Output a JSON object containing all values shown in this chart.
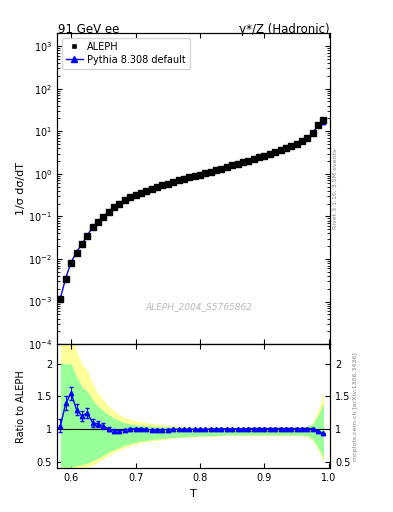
{
  "title_left": "91 GeV ee",
  "title_right": "γ*/Z (Hadronic)",
  "ylabel_main": "1/σ dσ/dT",
  "ylabel_ratio": "Ratio to ALEPH",
  "xlabel": "T",
  "right_label_top": "Rivet 3.1.10, 3.5M events",
  "right_label_bot": "mcplots.cern.ch [arXiv:1306.3436]",
  "watermark": "ALEPH_2004_S5765862",
  "legend_entries": [
    "ALEPH",
    "Pythia 8.308 default"
  ],
  "T_values": [
    0.5833,
    0.5917,
    0.6,
    0.6083,
    0.6167,
    0.625,
    0.6333,
    0.6417,
    0.65,
    0.6583,
    0.6667,
    0.675,
    0.6833,
    0.6917,
    0.7,
    0.7083,
    0.7167,
    0.725,
    0.7333,
    0.7417,
    0.75,
    0.7583,
    0.7667,
    0.775,
    0.7833,
    0.7917,
    0.8,
    0.8083,
    0.8167,
    0.825,
    0.8333,
    0.8417,
    0.85,
    0.8583,
    0.8667,
    0.875,
    0.8833,
    0.8917,
    0.9,
    0.9083,
    0.9167,
    0.925,
    0.9333,
    0.9417,
    0.95,
    0.9583,
    0.9667,
    0.975,
    0.9833,
    0.9917
  ],
  "data_values": [
    0.00115,
    0.0034,
    0.008,
    0.014,
    0.022,
    0.035,
    0.055,
    0.075,
    0.098,
    0.13,
    0.165,
    0.2,
    0.24,
    0.28,
    0.32,
    0.36,
    0.4,
    0.44,
    0.49,
    0.54,
    0.59,
    0.64,
    0.7,
    0.76,
    0.82,
    0.88,
    0.96,
    1.04,
    1.12,
    1.22,
    1.33,
    1.44,
    1.57,
    1.71,
    1.87,
    2.04,
    2.23,
    2.44,
    2.68,
    2.94,
    3.23,
    3.57,
    3.96,
    4.42,
    5.0,
    5.8,
    7.0,
    9.0,
    14.0,
    18.0
  ],
  "mc_values": [
    0.00121,
    0.0036,
    0.0084,
    0.0145,
    0.0225,
    0.0358,
    0.056,
    0.076,
    0.099,
    0.131,
    0.166,
    0.201,
    0.241,
    0.281,
    0.321,
    0.361,
    0.401,
    0.441,
    0.491,
    0.541,
    0.591,
    0.641,
    0.701,
    0.761,
    0.821,
    0.881,
    0.961,
    1.041,
    1.121,
    1.221,
    1.331,
    1.441,
    1.571,
    1.711,
    1.871,
    2.041,
    2.231,
    2.441,
    2.681,
    2.941,
    3.231,
    3.571,
    3.961,
    4.421,
    5.01,
    5.81,
    7.01,
    9.01,
    14.05,
    16.8
  ],
  "ratio_values": [
    1.05,
    1.4,
    1.55,
    1.3,
    1.2,
    1.25,
    1.1,
    1.08,
    1.05,
    1.0,
    0.98,
    0.97,
    0.99,
    1.0,
    1.01,
    1.01,
    1.0,
    0.99,
    0.99,
    0.99,
    0.995,
    1.0,
    1.0,
    1.0,
    1.0,
    1.0,
    1.0,
    1.0,
    1.005,
    1.005,
    1.005,
    1.005,
    1.005,
    1.005,
    1.005,
    1.01,
    1.01,
    1.01,
    1.01,
    1.01,
    1.01,
    1.01,
    1.01,
    1.01,
    1.01,
    1.01,
    1.01,
    1.01,
    0.97,
    0.935
  ],
  "ratio_err": [
    0.1,
    0.1,
    0.1,
    0.08,
    0.08,
    0.08,
    0.06,
    0.05,
    0.04,
    0.03,
    0.025,
    0.02,
    0.02,
    0.018,
    0.015,
    0.012,
    0.01,
    0.009,
    0.008,
    0.007,
    0.007,
    0.006,
    0.006,
    0.006,
    0.005,
    0.005,
    0.005,
    0.005,
    0.005,
    0.005,
    0.005,
    0.005,
    0.005,
    0.005,
    0.005,
    0.005,
    0.005,
    0.005,
    0.005,
    0.005,
    0.005,
    0.005,
    0.005,
    0.005,
    0.005,
    0.005,
    0.005,
    0.005,
    0.005,
    0.01
  ],
  "yellow_band_upper": [
    2.5,
    2.5,
    2.5,
    2.2,
    2.0,
    1.9,
    1.7,
    1.55,
    1.45,
    1.35,
    1.28,
    1.22,
    1.18,
    1.15,
    1.13,
    1.12,
    1.1,
    1.09,
    1.08,
    1.07,
    1.06,
    1.06,
    1.05,
    1.05,
    1.05,
    1.04,
    1.04,
    1.04,
    1.04,
    1.04,
    1.04,
    1.04,
    1.04,
    1.04,
    1.04,
    1.04,
    1.04,
    1.04,
    1.04,
    1.04,
    1.04,
    1.04,
    1.04,
    1.04,
    1.04,
    1.04,
    1.05,
    1.1,
    1.3,
    1.55
  ],
  "yellow_band_lower": [
    0.36,
    0.36,
    0.36,
    0.38,
    0.4,
    0.42,
    0.45,
    0.5,
    0.55,
    0.6,
    0.65,
    0.68,
    0.72,
    0.75,
    0.77,
    0.79,
    0.81,
    0.82,
    0.83,
    0.84,
    0.85,
    0.86,
    0.87,
    0.87,
    0.88,
    0.88,
    0.89,
    0.89,
    0.89,
    0.89,
    0.9,
    0.9,
    0.9,
    0.9,
    0.9,
    0.9,
    0.9,
    0.9,
    0.9,
    0.9,
    0.9,
    0.9,
    0.9,
    0.9,
    0.9,
    0.9,
    0.88,
    0.82,
    0.68,
    0.5
  ],
  "green_band_upper": [
    2.0,
    2.0,
    2.0,
    1.8,
    1.65,
    1.58,
    1.45,
    1.35,
    1.28,
    1.22,
    1.17,
    1.13,
    1.1,
    1.08,
    1.07,
    1.06,
    1.05,
    1.05,
    1.04,
    1.04,
    1.04,
    1.03,
    1.03,
    1.03,
    1.03,
    1.03,
    1.03,
    1.03,
    1.03,
    1.03,
    1.03,
    1.03,
    1.03,
    1.03,
    1.03,
    1.03,
    1.03,
    1.03,
    1.03,
    1.03,
    1.03,
    1.03,
    1.03,
    1.03,
    1.03,
    1.03,
    1.04,
    1.08,
    1.22,
    1.4
  ],
  "green_band_lower": [
    0.42,
    0.42,
    0.42,
    0.44,
    0.46,
    0.48,
    0.52,
    0.56,
    0.6,
    0.65,
    0.69,
    0.72,
    0.76,
    0.78,
    0.8,
    0.82,
    0.83,
    0.84,
    0.85,
    0.86,
    0.87,
    0.87,
    0.88,
    0.88,
    0.89,
    0.89,
    0.9,
    0.9,
    0.9,
    0.9,
    0.91,
    0.91,
    0.91,
    0.91,
    0.91,
    0.91,
    0.91,
    0.91,
    0.91,
    0.91,
    0.91,
    0.91,
    0.91,
    0.91,
    0.91,
    0.91,
    0.9,
    0.85,
    0.72,
    0.56
  ],
  "ylim_main": [
    0.0001,
    2000.0
  ],
  "ylim_ratio": [
    0.4,
    2.3
  ],
  "xlim": [
    0.578,
    1.002
  ],
  "yellow_color": "#ffff99",
  "green_color": "#99ff99"
}
